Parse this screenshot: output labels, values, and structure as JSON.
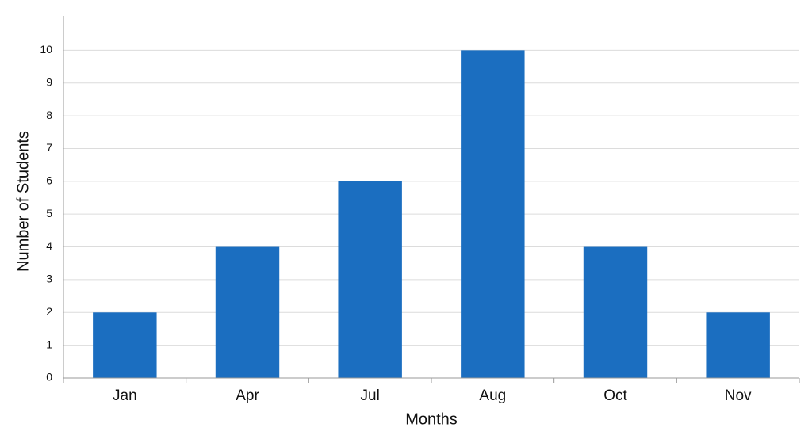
{
  "chart_data": {
    "type": "bar",
    "x_label": "Months",
    "y_label": "Number of Students",
    "categories": [
      "Jan",
      "Apr",
      "Jul",
      "Aug",
      "Oct",
      "Nov"
    ],
    "values": [
      2,
      4,
      6,
      10,
      4,
      2
    ],
    "color": "#1b6ec0",
    "ylim": [
      0,
      11
    ],
    "yticks": [
      0,
      1,
      2,
      3,
      4,
      5,
      6,
      7,
      8,
      9,
      10
    ],
    "grid": true
  }
}
